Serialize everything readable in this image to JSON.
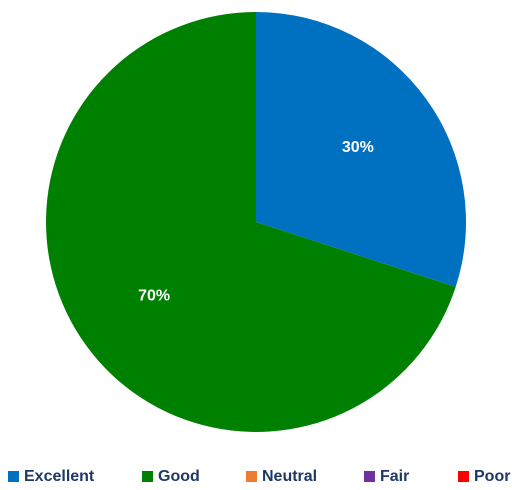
{
  "chart_data": {
    "type": "pie",
    "title": "",
    "categories": [
      "Excellent",
      "Good",
      "Neutral",
      "Fair",
      "Poor"
    ],
    "values": [
      30,
      70,
      0,
      0,
      0
    ],
    "labels": [
      "30%",
      "70%",
      "",
      "",
      ""
    ],
    "colors": [
      "#0070c0",
      "#008000",
      "#ed7d31",
      "#7030a0",
      "#ff0000"
    ],
    "legend_position": "bottom"
  }
}
